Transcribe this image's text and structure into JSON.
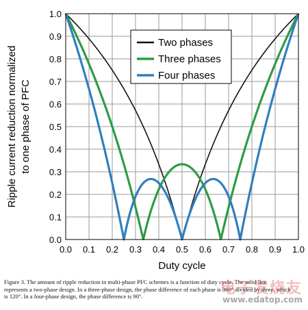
{
  "chart_data": {
    "type": "line",
    "xlabel": "Duty cycle",
    "ylabel_line1": "Ripple current reduction normalized",
    "ylabel_line2": "to one phase of PFC",
    "xlim": [
      0,
      1
    ],
    "ylim": [
      0,
      1
    ],
    "x_ticks": [
      "0.0",
      "0.1",
      "0.2",
      "0.3",
      "0.4",
      "0.5",
      "0.6",
      "0.7",
      "0.8",
      "0.9",
      "1.0"
    ],
    "y_ticks": [
      "0.0",
      "0.1",
      "0.2",
      "0.3",
      "0.4",
      "0.5",
      "0.6",
      "0.7",
      "0.8",
      "0.9",
      "1.0"
    ],
    "grid": true,
    "legend_position": "top-right",
    "series": [
      {
        "name": "Two phases",
        "color": "#111111",
        "n": 2
      },
      {
        "name": "Three phases",
        "color": "#2e9b47",
        "n": 3
      },
      {
        "name": "Four phases",
        "color": "#2f7fbf",
        "n": 4
      }
    ]
  },
  "caption": "Figure 3. The amount of ripple reduction in multi-phase PFC schemes is a function of duty cycle. The solid line represents a two-phase design. In a three-phase design, the phase difference of each phase is 360° divided by three, which is 120°. In a four-phase design, the phase difference is 90°.",
  "watermark": {
    "brand": "电子发烧友",
    "url": "www.edatop.com"
  }
}
